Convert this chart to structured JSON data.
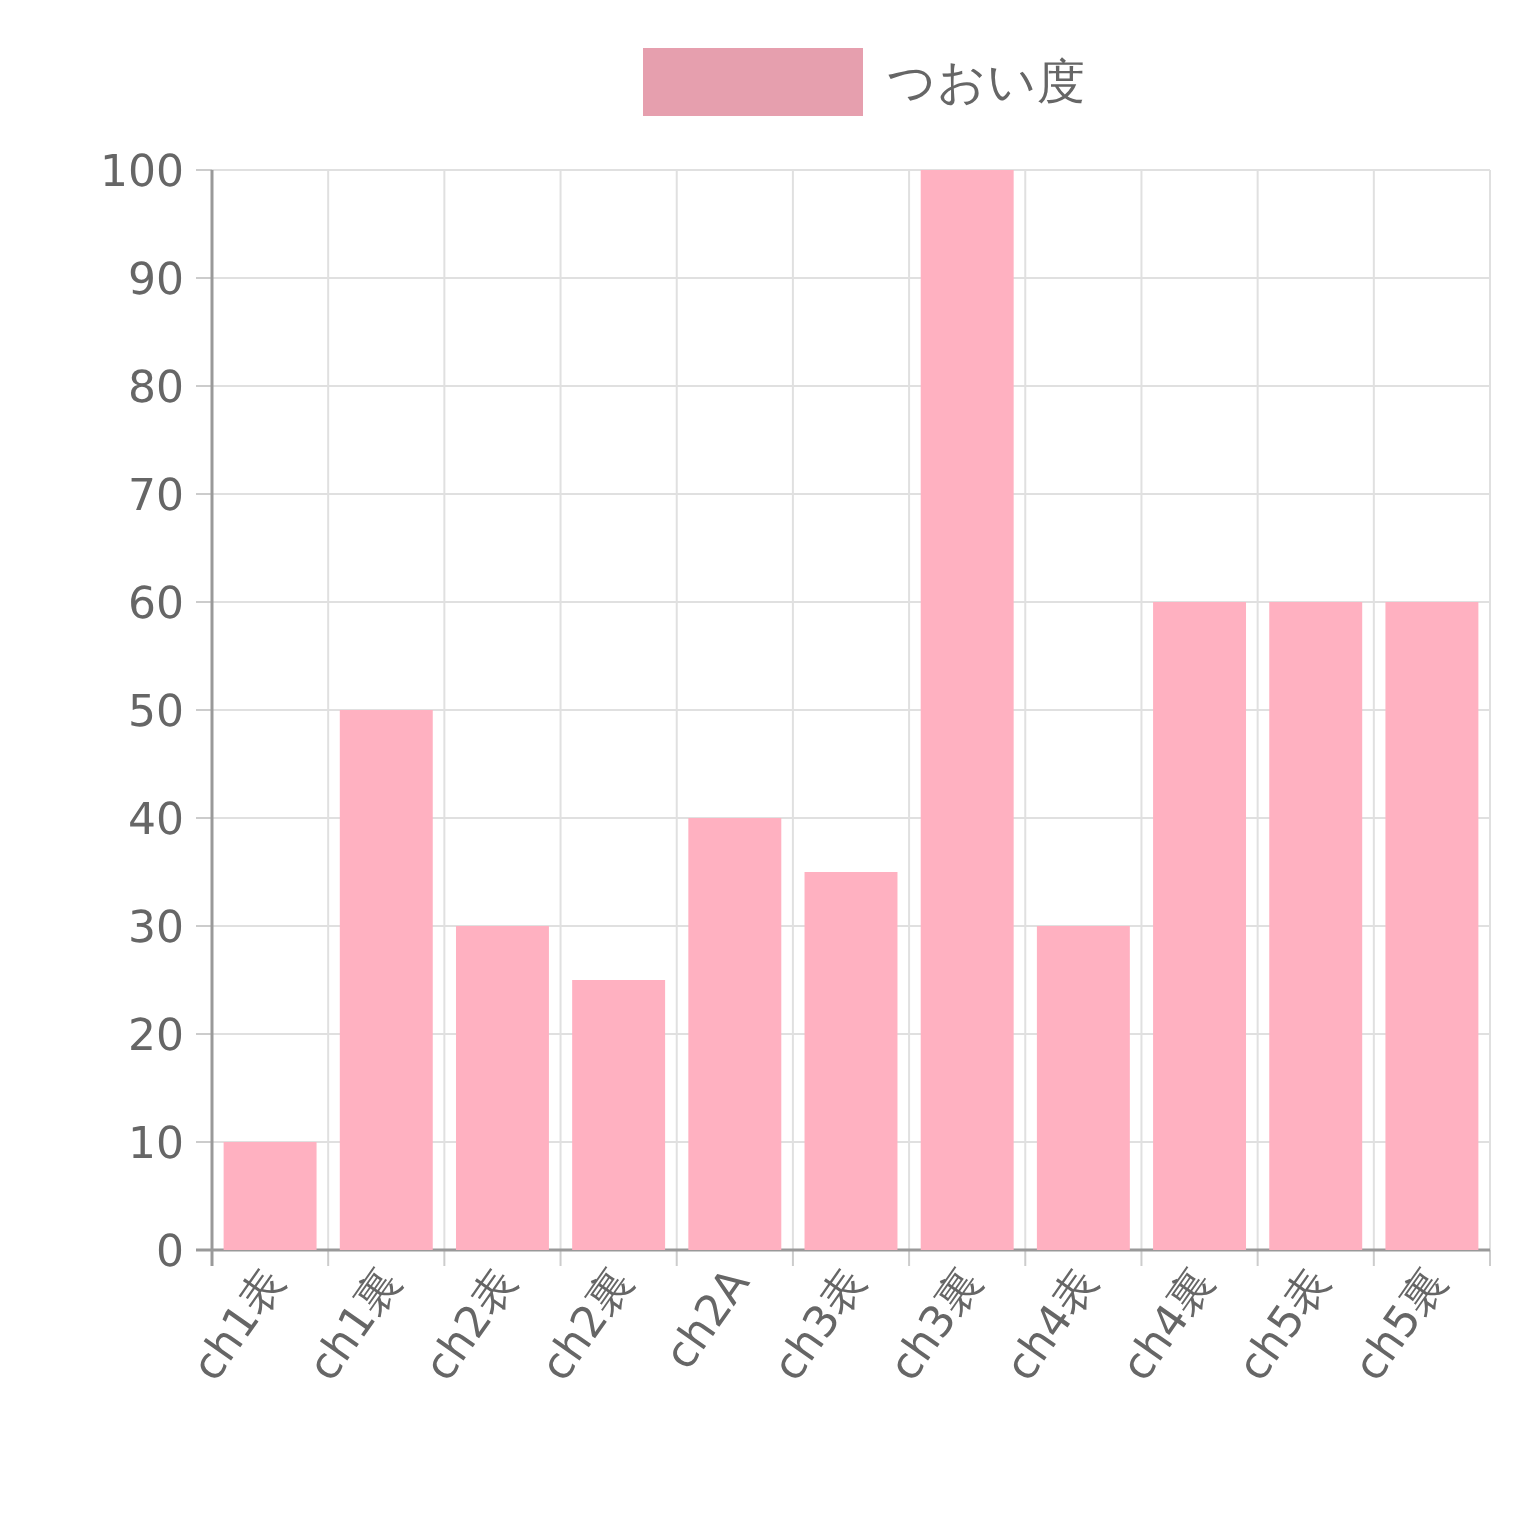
{
  "chart_data": {
    "type": "bar",
    "categories": [
      "ch1表",
      "ch1裏",
      "ch2表",
      "ch2裏",
      "ch2A",
      "ch3表",
      "ch3裏",
      "ch4表",
      "ch4裏",
      "ch5表",
      "ch5裏"
    ],
    "series": [
      {
        "name": "つおい度",
        "color": "#ffb1c1",
        "values": [
          10,
          50,
          30,
          25,
          40,
          35,
          100,
          30,
          60,
          60,
          60
        ]
      }
    ],
    "ylim": [
      0,
      100
    ],
    "yticks": [
      0,
      10,
      20,
      30,
      40,
      50,
      60,
      70,
      80,
      90,
      100
    ],
    "grid": true,
    "legend": "top"
  }
}
